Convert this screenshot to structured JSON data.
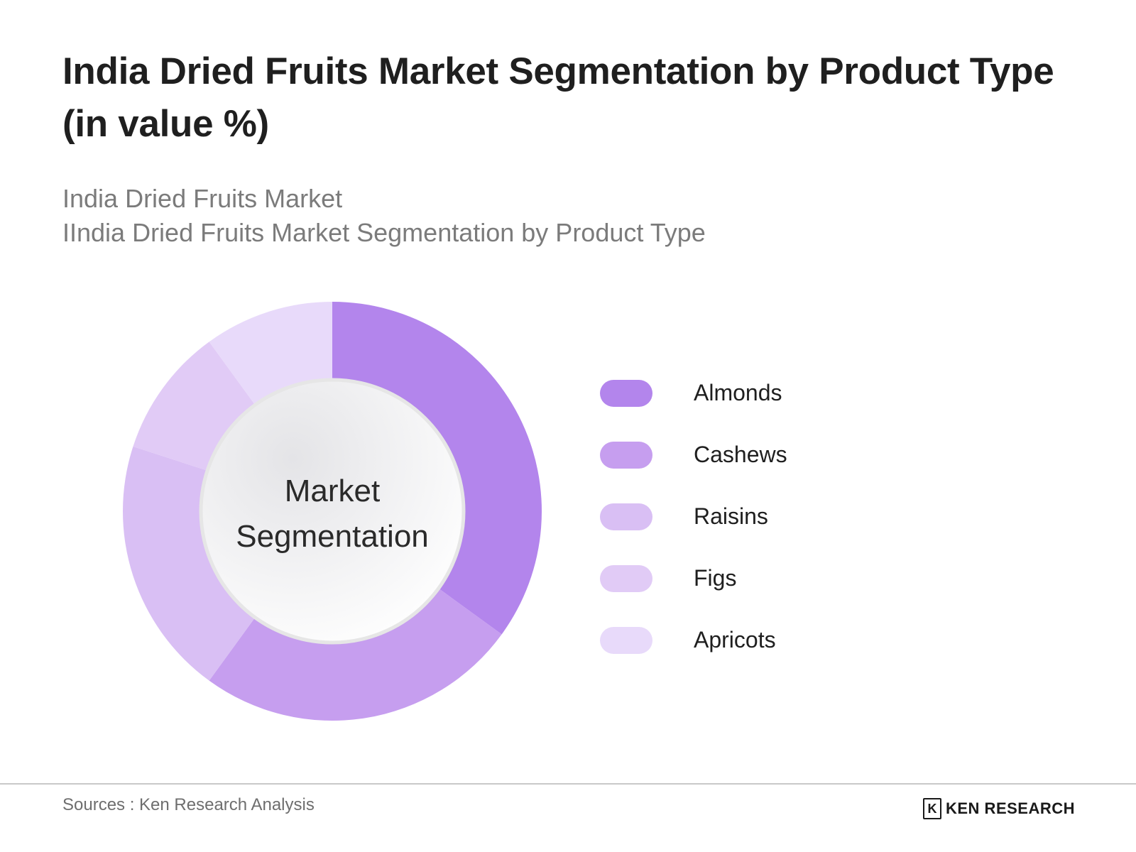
{
  "header": {
    "title": "India Dried Fruits Market Segmentation by Product Type (in value %)",
    "subtitle_line1": "India Dried Fruits Market",
    "subtitle_line2": "IIndia Dried Fruits Market Segmentation by Product Type"
  },
  "chart_data": {
    "type": "pie",
    "style": "donut",
    "title": "India Dried Fruits Market Segmentation by Product Type (in value %)",
    "center_label_line1": "Market",
    "center_label_line2": "Segmentation",
    "categories": [
      "Almonds",
      "Cashews",
      "Raisins",
      "Figs",
      "Apricots"
    ],
    "values": [
      35,
      25,
      20,
      10,
      10
    ],
    "colors": [
      "#b385ec",
      "#c69eef",
      "#d9bff4",
      "#e1cbf6",
      "#e8dafa"
    ],
    "legend_position": "right"
  },
  "footer": {
    "source": "Sources : Ken Research Analysis",
    "logo_mark": "K",
    "logo_text": "KEN RESEARCH"
  }
}
